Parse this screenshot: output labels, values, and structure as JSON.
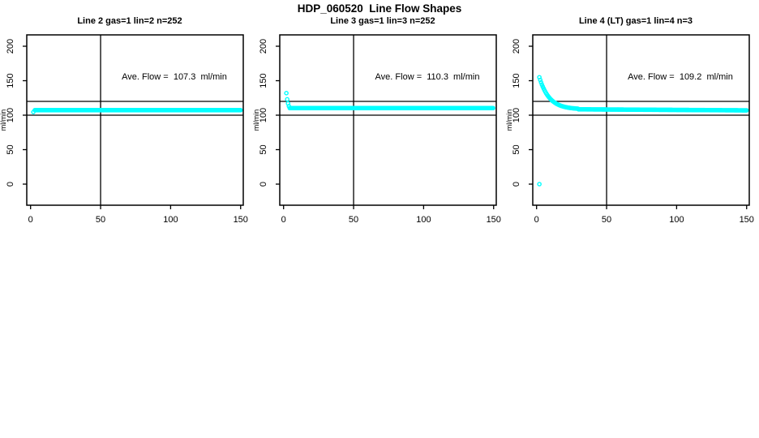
{
  "title": "HDP_060520  Line Flow Shapes",
  "colors": {
    "points": "#00ffff",
    "axis": "#000000",
    "reference_line": "#000000",
    "background": "#ffffff"
  },
  "chart_data": [
    {
      "type": "scatter",
      "title": "Line 2 gas=1 lin=2 n=252",
      "n": 252,
      "ave_flow_ml_min": 107.3,
      "annotation": "Ave. Flow =  107.3  ml/min",
      "xlabel": "",
      "ylabel": "ml/min",
      "xlim": [
        0,
        150
      ],
      "ylim": [
        0,
        200
      ],
      "xticks": [
        0,
        50,
        100,
        150
      ],
      "yticks": [
        0,
        50,
        100,
        150,
        200
      ],
      "grid": false,
      "legend": "none",
      "reference_lines": {
        "horizontal": [
          100,
          120
        ],
        "vertical": [
          50
        ]
      },
      "marker": "open-circle",
      "series": [
        {
          "name": "flow",
          "segments": [
            {
              "kind": "points",
              "pts": [
                [
                  2,
                  104.5
                ]
              ]
            },
            {
              "kind": "flat",
              "x_from": 3,
              "x_to": 150,
              "y": 107.3,
              "step": 0.6
            }
          ]
        }
      ]
    },
    {
      "type": "scatter",
      "title": "Line 3 gas=1 lin=3 n=252",
      "n": 252,
      "ave_flow_ml_min": 110.3,
      "annotation": "Ave. Flow =  110.3  ml/min",
      "xlabel": "",
      "ylabel": "ml/min",
      "xlim": [
        0,
        150
      ],
      "ylim": [
        0,
        200
      ],
      "xticks": [
        0,
        50,
        100,
        150
      ],
      "yticks": [
        0,
        50,
        100,
        150,
        200
      ],
      "grid": false,
      "legend": "none",
      "reference_lines": {
        "horizontal": [
          100,
          120
        ],
        "vertical": [
          50
        ]
      },
      "marker": "open-circle",
      "series": [
        {
          "name": "flow",
          "segments": [
            {
              "kind": "points",
              "pts": [
                [
                  2,
                  132
                ],
                [
                  2.6,
                  123
                ],
                [
                  3.2,
                  117
                ],
                [
                  3.8,
                  113
                ]
              ]
            },
            {
              "kind": "flat",
              "x_from": 4.4,
              "x_to": 150,
              "y": 110.3,
              "step": 0.6
            }
          ]
        }
      ]
    },
    {
      "type": "scatter",
      "title": "Line 4 (LT) gas=1 lin=4 n=3",
      "n": 3,
      "ave_flow_ml_min": 109.2,
      "annotation": "Ave. Flow =  109.2  ml/min",
      "xlabel": "",
      "ylabel": "ml/min",
      "xlim": [
        0,
        150
      ],
      "ylim": [
        0,
        200
      ],
      "xticks": [
        0,
        50,
        100,
        150
      ],
      "yticks": [
        0,
        50,
        100,
        150,
        200
      ],
      "grid": false,
      "legend": "none",
      "reference_lines": {
        "horizontal": [
          100,
          120
        ],
        "vertical": [
          50
        ]
      },
      "marker": "open-circle",
      "series": [
        {
          "name": "flow",
          "segments": [
            {
              "kind": "points",
              "pts": [
                [
                  2,
                  0
                ]
              ]
            },
            {
              "kind": "decay",
              "x_from": 2,
              "x_to": 30,
              "y_from": 155,
              "y_to": 108.5,
              "tau": 7,
              "step": 0.6
            },
            {
              "kind": "ramp",
              "x_from": 30,
              "x_to": 150,
              "y_from": 108.5,
              "y_to": 107.0,
              "step": 0.6
            }
          ]
        }
      ]
    }
  ]
}
